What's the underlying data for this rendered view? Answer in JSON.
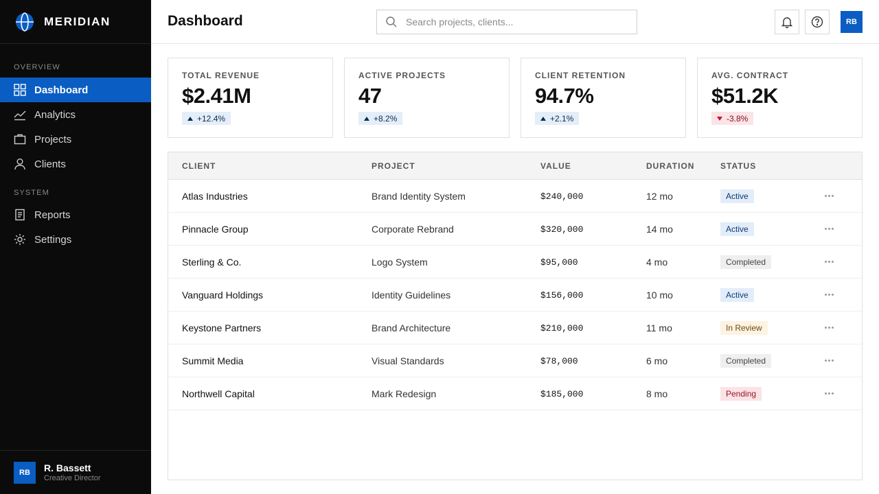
{
  "app": {
    "name": "MERIDIAN"
  },
  "sidebar": {
    "sections": [
      {
        "label": "OVERVIEW",
        "items": [
          {
            "label": "Dashboard",
            "icon": "grid-icon",
            "active": true
          },
          {
            "label": "Analytics",
            "icon": "chart-line-icon",
            "active": false
          },
          {
            "label": "Projects",
            "icon": "briefcase-icon",
            "active": false
          },
          {
            "label": "Clients",
            "icon": "user-icon",
            "active": false
          }
        ]
      },
      {
        "label": "SYSTEM",
        "items": [
          {
            "label": "Reports",
            "icon": "document-icon",
            "active": false
          },
          {
            "label": "Settings",
            "icon": "gear-icon",
            "active": false
          }
        ]
      }
    ],
    "user": {
      "initials": "RB",
      "name": "R. Bassett",
      "role": "Creative Director"
    }
  },
  "header": {
    "title": "Dashboard",
    "search_placeholder": "Search projects, clients...",
    "avatar_initials": "RB"
  },
  "stats": [
    {
      "label": "TOTAL REVENUE",
      "value": "$2.41M",
      "delta": "+12.4%",
      "trend": "up"
    },
    {
      "label": "ACTIVE PROJECTS",
      "value": "47",
      "delta": "+8.2%",
      "trend": "up"
    },
    {
      "label": "CLIENT RETENTION",
      "value": "94.7%",
      "delta": "+2.1%",
      "trend": "up"
    },
    {
      "label": "AVG. CONTRACT",
      "value": "$51.2K",
      "delta": "-3.8%",
      "trend": "down"
    }
  ],
  "table": {
    "columns": [
      "CLIENT",
      "PROJECT",
      "VALUE",
      "DURATION",
      "STATUS"
    ],
    "rows": [
      {
        "client": "Atlas Industries",
        "project": "Brand Identity System",
        "value": "$240,000",
        "duration": "12 mo",
        "status": "Active",
        "status_type": "active"
      },
      {
        "client": "Pinnacle Group",
        "project": "Corporate Rebrand",
        "value": "$320,000",
        "duration": "14 mo",
        "status": "Active",
        "status_type": "active"
      },
      {
        "client": "Sterling & Co.",
        "project": "Logo System",
        "value": "$95,000",
        "duration": "4 mo",
        "status": "Completed",
        "status_type": "completed"
      },
      {
        "client": "Vanguard Holdings",
        "project": "Identity Guidelines",
        "value": "$156,000",
        "duration": "10 mo",
        "status": "Active",
        "status_type": "active"
      },
      {
        "client": "Keystone Partners",
        "project": "Brand Architecture",
        "value": "$210,000",
        "duration": "11 mo",
        "status": "In Review",
        "status_type": "review"
      },
      {
        "client": "Summit Media",
        "project": "Visual Standards",
        "value": "$78,000",
        "duration": "6 mo",
        "status": "Completed",
        "status_type": "completed"
      },
      {
        "client": "Northwell Capital",
        "project": "Mark Redesign",
        "value": "$185,000",
        "duration": "8 mo",
        "status": "Pending",
        "status_type": "pending"
      }
    ]
  },
  "colors": {
    "accent": "#0a5dc2",
    "sidebar_bg": "#0b0b0b",
    "positive_bg": "#e4eef8",
    "negative_bg": "#fbe3e6"
  }
}
